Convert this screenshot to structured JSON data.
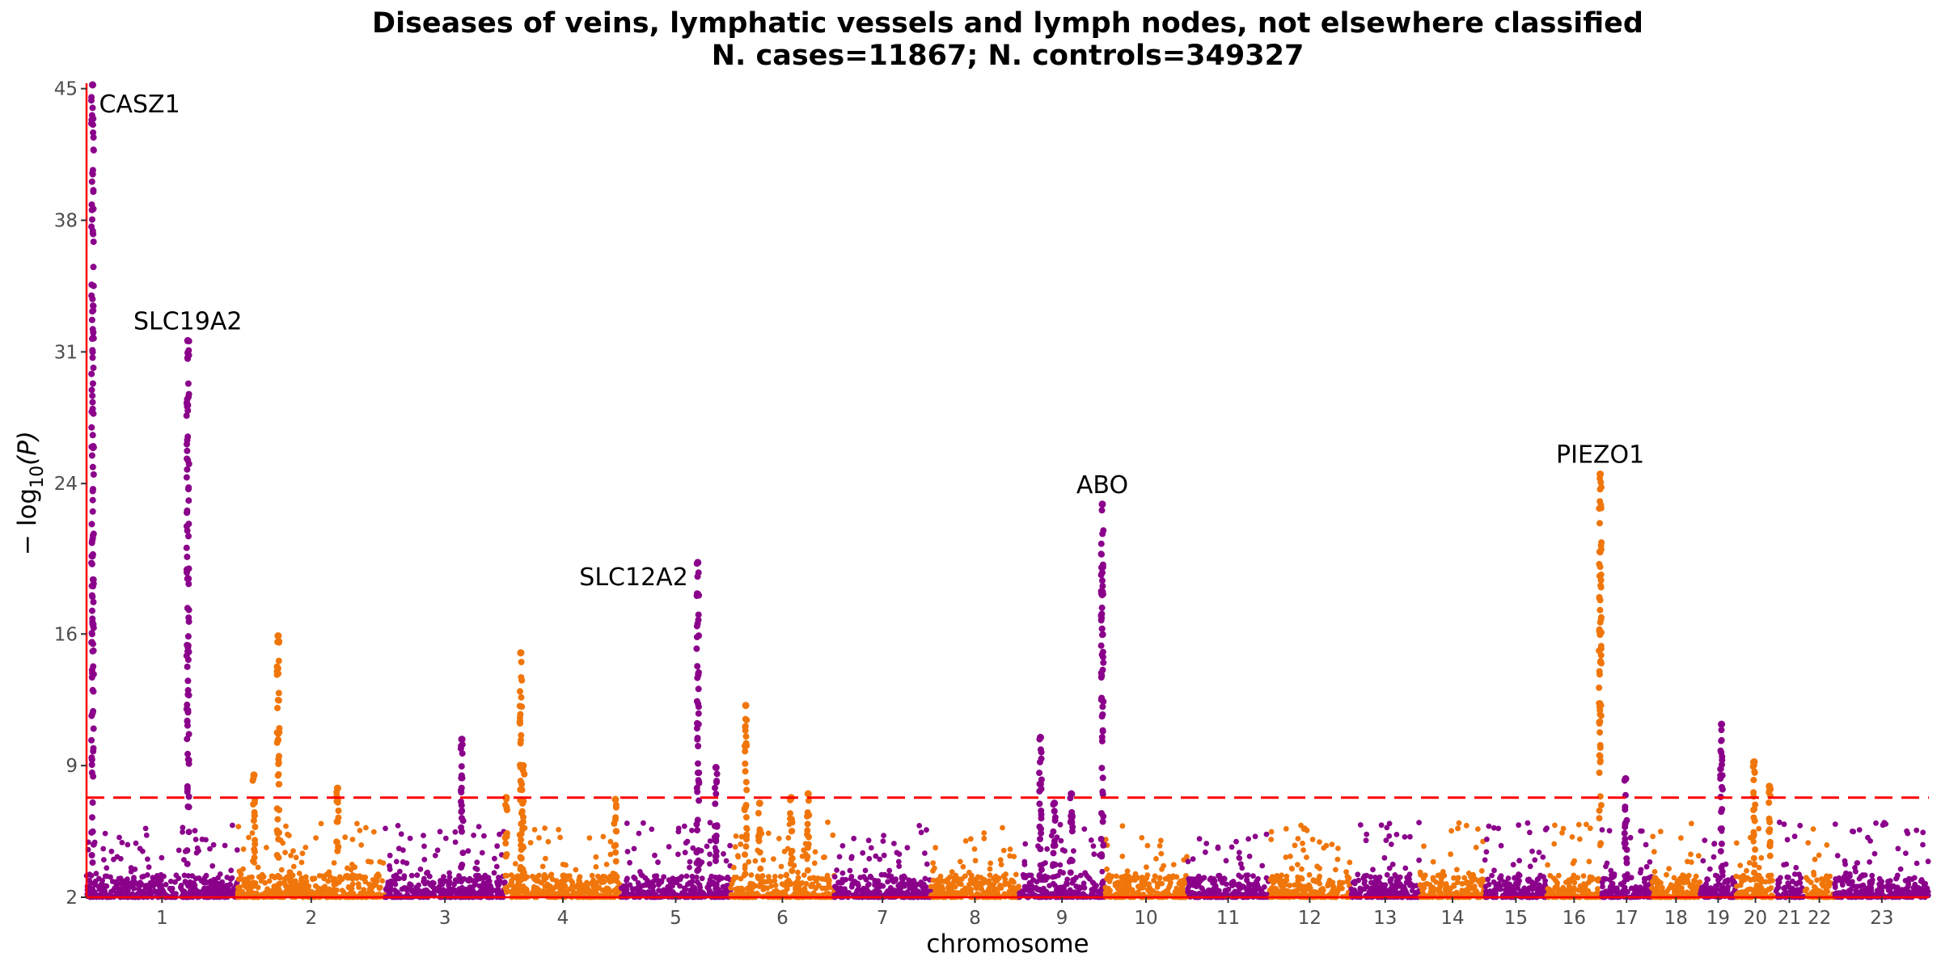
{
  "chart_data": {
    "type": "scatter",
    "title_line1": "Diseases of veins, lymphatic vessels and lymph nodes, not elsewhere classified",
    "title_line2": "N. cases=11867; N. controls=349327",
    "xlabel": "chromosome",
    "ylabel": "− log",
    "ylabel_sub": "10",
    "ylabel_tail": "(P)",
    "ylim": [
      2,
      45.2
    ],
    "y_ticks": [
      2,
      9,
      16,
      24,
      31,
      38,
      45
    ],
    "y_tick_labels": [
      "2",
      "9",
      "16",
      "24",
      "31",
      "38",
      "45"
    ],
    "significance_threshold": 7.3,
    "grid": false,
    "colors": {
      "odd_chromosome": "#8b008b",
      "even_chromosome": "#f0760b",
      "threshold_line": "#ff0000",
      "axis_line": "#ff0000"
    },
    "chromosomes": [
      {
        "label": "1",
        "length": 249
      },
      {
        "label": "2",
        "length": 243
      },
      {
        "label": "3",
        "length": 198
      },
      {
        "label": "4",
        "length": 191
      },
      {
        "label": "5",
        "length": 181
      },
      {
        "label": "6",
        "length": 171
      },
      {
        "label": "7",
        "length": 159
      },
      {
        "label": "8",
        "length": 146
      },
      {
        "label": "9",
        "length": 141
      },
      {
        "label": "10",
        "length": 136
      },
      {
        "label": "11",
        "length": 135
      },
      {
        "label": "12",
        "length": 134
      },
      {
        "label": "13",
        "length": 115
      },
      {
        "label": "14",
        "length": 107
      },
      {
        "label": "15",
        "length": 102
      },
      {
        "label": "16",
        "length": 90
      },
      {
        "label": "17",
        "length": 83
      },
      {
        "label": "18",
        "length": 80
      },
      {
        "label": "19",
        "length": 59
      },
      {
        "label": "20",
        "length": 64
      },
      {
        "label": "21",
        "length": 48
      },
      {
        "label": "22",
        "length": 51
      },
      {
        "label": "23",
        "length": 155
      }
    ],
    "peaks": [
      {
        "chr": "1",
        "pos": 10,
        "top": 45.2,
        "gene": "CASZ1"
      },
      {
        "chr": "1",
        "pos": 167,
        "top": 31.6,
        "gene": "SLC19A2"
      },
      {
        "chr": "2",
        "pos": 27,
        "top": 8.5
      },
      {
        "chr": "2",
        "pos": 67,
        "top": 15.9
      },
      {
        "chr": "2",
        "pos": 165,
        "top": 7.8
      },
      {
        "chr": "3",
        "pos": 127,
        "top": 10.4
      },
      {
        "chr": "4",
        "pos": 2,
        "top": 7.3
      },
      {
        "chr": "4",
        "pos": 26,
        "top": 15.0
      },
      {
        "chr": "4",
        "pos": 30,
        "top": 9.0
      },
      {
        "chr": "4",
        "pos": 182,
        "top": 7.2
      },
      {
        "chr": "5",
        "pos": 127,
        "top": 19.8,
        "gene": "SLC12A2"
      },
      {
        "chr": "5",
        "pos": 157,
        "top": 8.9
      },
      {
        "chr": "6",
        "pos": 25,
        "top": 12.2
      },
      {
        "chr": "6",
        "pos": 48,
        "top": 7.0
      },
      {
        "chr": "6",
        "pos": 100,
        "top": 7.3
      },
      {
        "chr": "6",
        "pos": 128,
        "top": 7.5
      },
      {
        "chr": "9",
        "pos": 35,
        "top": 10.5
      },
      {
        "chr": "9",
        "pos": 58,
        "top": 7.0
      },
      {
        "chr": "9",
        "pos": 86,
        "top": 7.5
      },
      {
        "chr": "9",
        "pos": 137,
        "top": 22.9,
        "gene": "ABO"
      },
      {
        "chr": "16",
        "pos": 88,
        "top": 24.5,
        "gene": "PIEZO1"
      },
      {
        "chr": "17",
        "pos": 40,
        "top": 8.3
      },
      {
        "chr": "19",
        "pos": 35,
        "top": 11.2
      },
      {
        "chr": "20",
        "pos": 30,
        "top": 9.2
      },
      {
        "chr": "20",
        "pos": 55,
        "top": 7.9
      }
    ],
    "annotations": [
      {
        "gene": "CASZ1",
        "x_chr": "1",
        "x_pos": 10,
        "y": 45.2
      },
      {
        "gene": "SLC19A2",
        "x_chr": "1",
        "x_pos": 167,
        "y": 31.6
      },
      {
        "gene": "SLC12A2",
        "x_chr": "5",
        "x_pos": 127,
        "y": 19.8
      },
      {
        "gene": "ABO",
        "x_chr": "9",
        "x_pos": 137,
        "y": 22.9
      },
      {
        "gene": "PIEZO1",
        "x_chr": "16",
        "x_pos": 88,
        "y": 24.5
      }
    ]
  }
}
